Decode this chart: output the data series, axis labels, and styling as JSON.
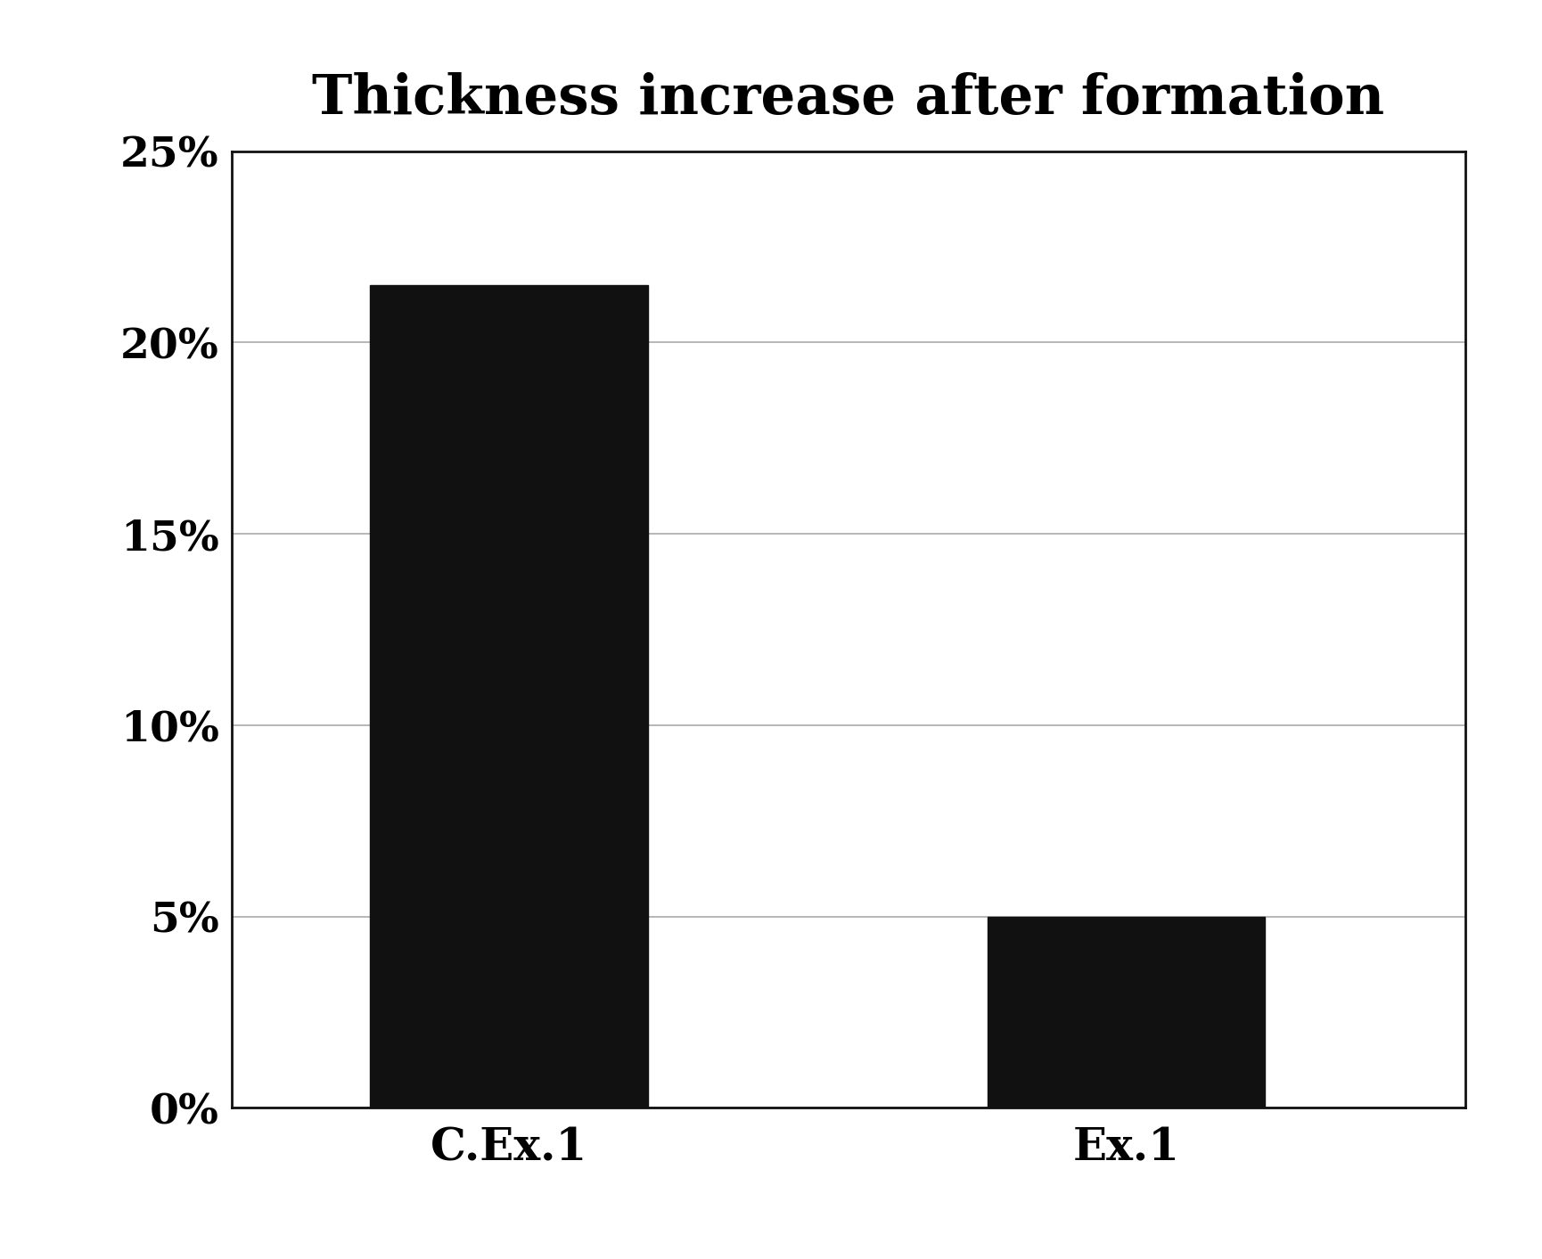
{
  "categories": [
    "C.Ex.1",
    "Ex.1"
  ],
  "values": [
    0.215,
    0.05
  ],
  "bar_color": "#111111",
  "title": "Thickness increase after formation",
  "title_fontsize": 44,
  "title_fontweight": "bold",
  "ylim": [
    0,
    0.25
  ],
  "yticks": [
    0.0,
    0.05,
    0.1,
    0.15,
    0.2,
    0.25
  ],
  "ytick_labels": [
    "0%",
    "5%",
    "10%",
    "15%",
    "20%",
    "25%"
  ],
  "tick_fontsize": 34,
  "category_fontsize": 36,
  "bar_width": 0.45,
  "background_color": "#ffffff",
  "grid_color": "#aaaaaa",
  "spine_color": "#111111",
  "x_positions": [
    0.5,
    1.5
  ],
  "xlim": [
    0.05,
    2.05
  ]
}
